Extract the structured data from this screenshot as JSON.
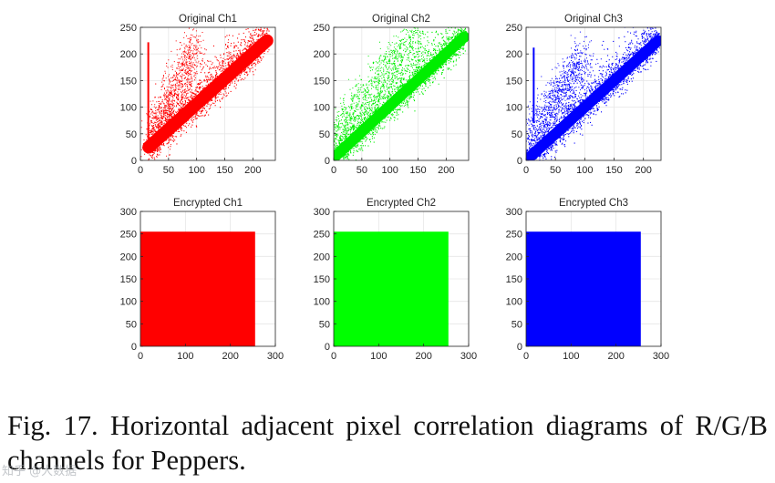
{
  "chart_data": [
    {
      "type": "scatter",
      "title": "Original Ch1",
      "color": "#ff0000",
      "xlim": [
        0,
        240
      ],
      "ylim": [
        0,
        250
      ],
      "xticks": [
        0,
        50,
        100,
        150,
        200
      ],
      "yticks": [
        0,
        50,
        100,
        150,
        200,
        250
      ],
      "trend": {
        "from": [
          15,
          25
        ],
        "to": [
          225,
          225
        ]
      },
      "spread": {
        "from": [
          15,
          30
        ],
        "to": [
          100,
          225
        ]
      },
      "vertical_streak": {
        "x": 14,
        "y": [
          40,
          222
        ]
      },
      "distribution": "correlated"
    },
    {
      "type": "scatter",
      "title": "Original Ch2",
      "color": "#00ee00",
      "xlim": [
        0,
        240
      ],
      "ylim": [
        0,
        250
      ],
      "xticks": [
        0,
        50,
        100,
        150,
        200
      ],
      "yticks": [
        0,
        50,
        100,
        150,
        200,
        250
      ],
      "trend": {
        "from": [
          0,
          5
        ],
        "to": [
          232,
          232
        ]
      },
      "spread": {
        "from": [
          5,
          55
        ],
        "to": [
          150,
          245
        ]
      },
      "distribution": "correlated"
    },
    {
      "type": "scatter",
      "title": "Original Ch3",
      "color": "#0000ff",
      "xlim": [
        0,
        230
      ],
      "ylim": [
        0,
        250
      ],
      "xticks": [
        0,
        50,
        100,
        150,
        200
      ],
      "yticks": [
        0,
        50,
        100,
        150,
        200,
        250
      ],
      "trend": {
        "from": [
          0,
          0
        ],
        "to": [
          225,
          225
        ]
      },
      "spread": {
        "from": [
          5,
          40
        ],
        "to": [
          100,
          200
        ]
      },
      "vertical_streak": {
        "x": 13,
        "y": [
          70,
          212
        ]
      },
      "distribution": "correlated"
    },
    {
      "type": "scatter",
      "title": "Encrypted Ch1",
      "color": "#ff0000",
      "xlim": [
        0,
        300
      ],
      "ylim": [
        0,
        300
      ],
      "xticks": [
        0,
        100,
        200,
        300
      ],
      "yticks": [
        0,
        50,
        100,
        150,
        200,
        250,
        300
      ],
      "fill_range": [
        0,
        255
      ],
      "distribution": "uniform"
    },
    {
      "type": "scatter",
      "title": "Encrypted Ch2",
      "color": "#00ff00",
      "xlim": [
        0,
        300
      ],
      "ylim": [
        0,
        300
      ],
      "xticks": [
        0,
        100,
        200,
        300
      ],
      "yticks": [
        0,
        50,
        100,
        150,
        200,
        250,
        300
      ],
      "fill_range": [
        0,
        255
      ],
      "distribution": "uniform"
    },
    {
      "type": "scatter",
      "title": "Encrypted Ch3",
      "color": "#0000ff",
      "xlim": [
        0,
        300
      ],
      "ylim": [
        0,
        300
      ],
      "xticks": [
        0,
        100,
        200,
        300
      ],
      "yticks": [
        0,
        50,
        100,
        150,
        200,
        250,
        300
      ],
      "fill_range": [
        0,
        255
      ],
      "distribution": "uniform"
    }
  ],
  "caption": {
    "text": "Fig. 17. Horizontal adjacent pixel correlation diagrams of R/G/B channels for Peppers."
  },
  "watermark": {
    "text": "知乎 @大数据"
  }
}
